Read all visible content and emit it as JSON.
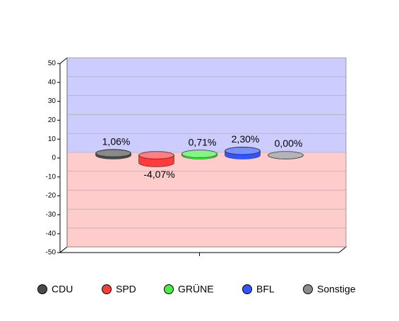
{
  "chart_data": {
    "type": "bar",
    "categories": [
      null
    ],
    "series": [
      {
        "name": "CDU",
        "color": "#4a4a4a",
        "values": [
          1.06
        ],
        "value_labels": [
          "1,06%"
        ]
      },
      {
        "name": "SPD",
        "color": "#ff3c3c",
        "values": [
          -4.07
        ],
        "value_labels": [
          "-4,07%"
        ]
      },
      {
        "name": "GRÜNE",
        "color": "#44ee44",
        "values": [
          0.71
        ],
        "value_labels": [
          "0,71%"
        ]
      },
      {
        "name": "BFL",
        "color": "#3355ff",
        "values": [
          2.3
        ],
        "value_labels": [
          "2,30%"
        ]
      },
      {
        "name": "Sonstige",
        "color": "#8c8c8c",
        "values": [
          0.0
        ],
        "value_labels": [
          "0,00%"
        ]
      }
    ],
    "ylim": [
      -50,
      50
    ],
    "yticks": [
      -50,
      -40,
      -30,
      -20,
      -10,
      0,
      10,
      20,
      30,
      40,
      50
    ],
    "grid": true,
    "positive_color": "#ccccff",
    "negative_color": "#ffcccc"
  }
}
